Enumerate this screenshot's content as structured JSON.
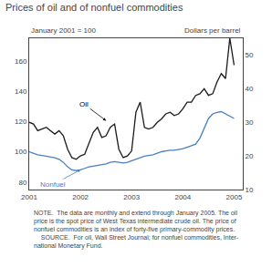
{
  "chart_data": {
    "type": "line",
    "title": "Prices of oil and of nonfuel commodities",
    "ylabel": "January 2001 = 100",
    "y2label": "Dollars per barrel",
    "x": [
      2001.0,
      2001.0833,
      2001.1667,
      2001.25,
      2001.3333,
      2001.4167,
      2001.5,
      2001.5833,
      2001.6667,
      2001.75,
      2001.8333,
      2001.9167,
      2002.0,
      2002.0833,
      2002.1667,
      2002.25,
      2002.3333,
      2002.4167,
      2002.5,
      2002.5833,
      2002.6667,
      2002.75,
      2002.8333,
      2002.9167,
      2003.0,
      2003.0833,
      2003.1667,
      2003.25,
      2003.3333,
      2003.4167,
      2003.5,
      2003.5833,
      2003.6667,
      2003.75,
      2003.8333,
      2003.9167,
      2004.0,
      2004.0833,
      2004.1667,
      2004.25,
      2004.3333,
      2004.4167,
      2004.5,
      2004.5833,
      2004.6667,
      2004.75,
      2004.8333,
      2004.9167,
      2005.0
    ],
    "xlim": [
      2001.0,
      2005.17
    ],
    "xticks": [
      2001,
      2002,
      2003,
      2004,
      2005
    ],
    "ylim": [
      75,
      175
    ],
    "yticks": [
      80,
      100,
      120,
      140,
      160
    ],
    "y2lim": [
      10,
      55
    ],
    "y2ticks": [
      10,
      20,
      30,
      40,
      50
    ],
    "grid": false,
    "series": [
      {
        "name": "Nonfuel",
        "color": "#4a7fc1",
        "values": [
          100.0,
          99.0,
          98.0,
          97.5,
          97.0,
          96.5,
          96.0,
          95.0,
          93.0,
          90.0,
          88.0,
          87.5,
          88.0,
          89.0,
          90.0,
          90.5,
          91.0,
          91.5,
          92.0,
          93.0,
          93.5,
          93.0,
          92.5,
          93.0,
          94.0,
          95.0,
          96.0,
          97.0,
          97.5,
          98.0,
          99.0,
          100.0,
          100.5,
          101.0,
          101.0,
          101.5,
          102.0,
          103.0,
          104.0,
          105.0,
          109.0,
          116.0,
          122.0,
          125.0,
          126.0,
          126.5,
          125.0,
          124.0,
          122.0
        ]
      },
      {
        "name": "Oil",
        "color": "#1a1a1a",
        "axis": "y2",
        "values": [
          30.0,
          29.5,
          27.5,
          28.0,
          28.5,
          27.5,
          26.5,
          27.5,
          26.0,
          22.0,
          19.5,
          19.0,
          20.0,
          20.5,
          24.0,
          27.0,
          28.5,
          25.5,
          26.0,
          28.5,
          29.5,
          22.0,
          19.5,
          20.0,
          21.5,
          33.0,
          36.0,
          28.5,
          28.0,
          28.5,
          30.0,
          31.0,
          32.5,
          33.0,
          32.0,
          32.5,
          34.0,
          36.0,
          36.0,
          38.0,
          38.5,
          40.0,
          38.0,
          38.5,
          42.0,
          44.5,
          43.0,
          55.0,
          47.0
        ]
      }
    ],
    "annotations": [
      {
        "text": "Oil",
        "x": 2002.5,
        "y": 30.5,
        "axis": "y2"
      },
      {
        "text": "Nonfuel",
        "x": 2002.0,
        "y": 88.0,
        "axis": "y",
        "color": "#4a7fc1"
      }
    ],
    "note": [
      "NOTE.  The data are monthly and extend through January 2005. The oil",
      "price is the spot price of West Texas intermediate crude oil. The price of",
      "nonfuel commodities is an index of forty-five primary-commodity prices.",
      "    SOURCE.  For oil, Wall Street Journal; for nonfuel commodities, Inter-",
      "national Monetary Fund."
    ]
  }
}
